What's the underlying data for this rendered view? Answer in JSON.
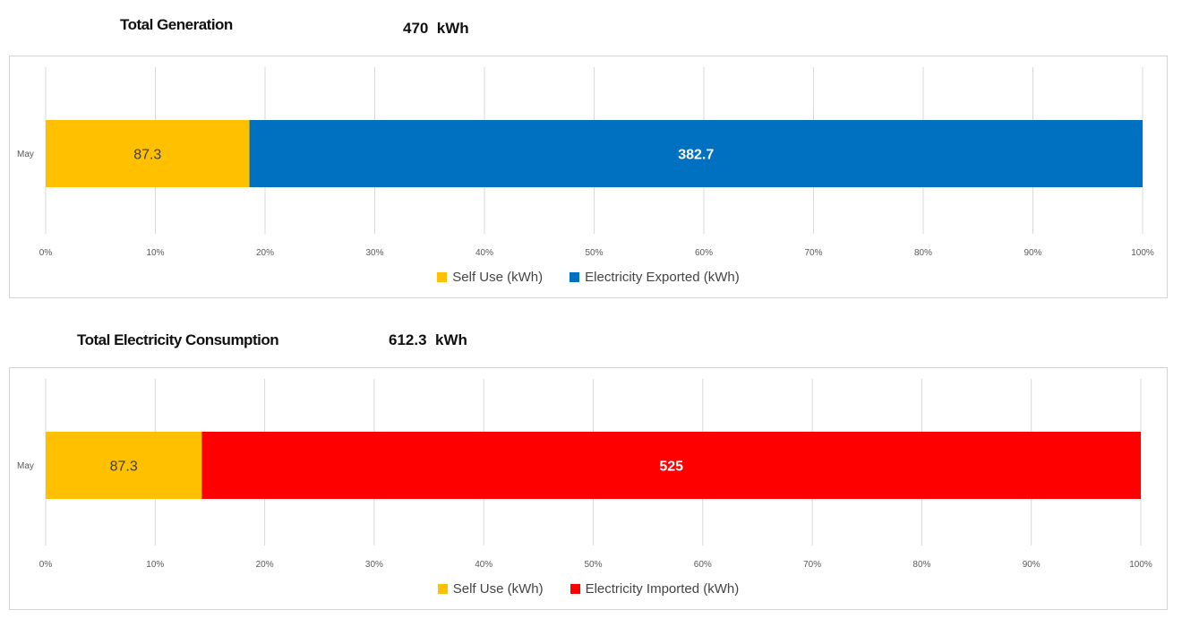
{
  "charts": [
    {
      "title": "Total Generation",
      "total": "470  kWh"
    },
    {
      "title": "Total Electricity Consumption",
      "total": "612.3  kWh"
    }
  ],
  "chart_data": [
    {
      "type": "bar",
      "orientation": "horizontal",
      "stacked": "100%",
      "title": "Total Generation",
      "categories": [
        "May"
      ],
      "series": [
        {
          "name": "Self Use (kWh)",
          "values": [
            87.3
          ],
          "color": "#FFC000",
          "label_color": "#404040",
          "label_bold": false
        },
        {
          "name": "Electricity Exported (kWh)",
          "values": [
            382.7
          ],
          "color": "#0070C0",
          "label_color": "#ffffff",
          "label_bold": true
        }
      ],
      "xticks": [
        "0%",
        "10%",
        "20%",
        "30%",
        "40%",
        "50%",
        "60%",
        "70%",
        "80%",
        "90%",
        "100%"
      ],
      "xlim": [
        0,
        100
      ],
      "grid": true,
      "legend_position": "bottom"
    },
    {
      "type": "bar",
      "orientation": "horizontal",
      "stacked": "100%",
      "title": "Total Electricity Consumption",
      "categories": [
        "May"
      ],
      "series": [
        {
          "name": "Self Use (kWh)",
          "values": [
            87.3
          ],
          "color": "#FFC000",
          "label_color": "#404040",
          "label_bold": false
        },
        {
          "name": "Electricity Imported (kWh)",
          "values": [
            525
          ],
          "color": "#FF0000",
          "label_color": "#ffffff",
          "label_bold": true
        }
      ],
      "xticks": [
        "0%",
        "10%",
        "20%",
        "30%",
        "40%",
        "50%",
        "60%",
        "70%",
        "80%",
        "90%",
        "100%"
      ],
      "xlim": [
        0,
        100
      ],
      "grid": true,
      "legend_position": "bottom"
    }
  ]
}
